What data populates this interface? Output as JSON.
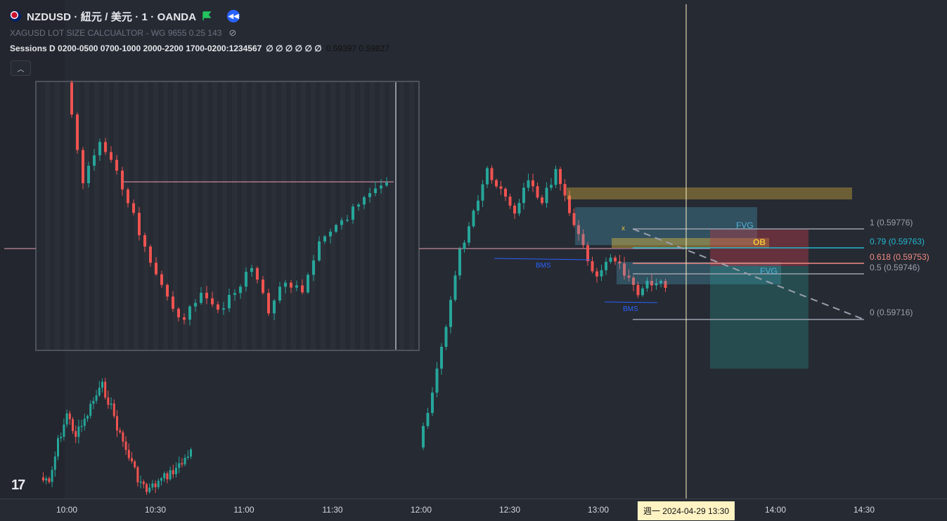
{
  "legend": {
    "symbol_title": "NZDUSD · 紐元 / 美元 · 1 · OANDA",
    "indicator1": "XAGUSD LOT SIZE CALCUALTOR - WG 9655 0.25 143",
    "indicator2_name": "Sessions D 0200-0500 0700-1000 2000-2200 1700-0200:1234567",
    "indicator2_placeholders": "∅ ∅ ∅ ∅ ∅ ∅",
    "indicator2_values": "0.59397  0.59827",
    "collapse_icon": "chevron-up-icon",
    "flag_icon": "flag-icon",
    "rewind_icon": "rewind-icon",
    "eye_icon": "eye-off-icon"
  },
  "time_axis": {
    "ticks": [
      "10:00",
      "10:30",
      "11:00",
      "11:30",
      "12:00",
      "12:30",
      "13:00",
      "14:00",
      "14:30"
    ],
    "crosshair_label": "週一 2024-04-29   13:30"
  },
  "fib_levels": [
    {
      "label": "1 (0.59776)",
      "color": "#9aa0ac"
    },
    {
      "label": "0.79 (0.59763)",
      "color": "#22b8cf"
    },
    {
      "label": "0.618 (0.59753)",
      "color": "#f28b82"
    },
    {
      "label": "0.5 (0.59746)",
      "color": "#9aa0ac"
    },
    {
      "label": "0 (0.59716)",
      "color": "#9aa0ac"
    }
  ],
  "annotations": {
    "fvg_1": "FVG",
    "fvg_2": "FVG",
    "ob": "OB",
    "bms_1": "BMS",
    "bms_2": "BMS",
    "x_mark": "x"
  },
  "colors": {
    "background": "#262a33",
    "bull": "#26a69a",
    "bear": "#ef5350",
    "crosshair": "#fff3c4",
    "fvg": "#4fb3d9",
    "ob": "#f0c43c"
  },
  "logo": "17"
}
